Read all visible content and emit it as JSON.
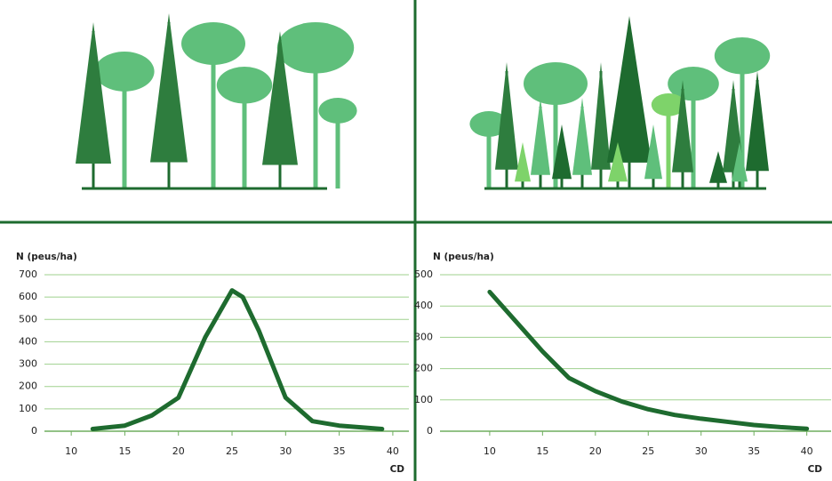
{
  "chart_data": [
    {
      "type": "line",
      "y_label": "N (peus/ha)",
      "x_label": "CD",
      "x": [
        12,
        15,
        17.5,
        20,
        22.5,
        25,
        26,
        27.5,
        30,
        32.5,
        35,
        39
      ],
      "values": [
        10,
        25,
        70,
        150,
        420,
        630,
        600,
        450,
        150,
        45,
        25,
        10
      ],
      "color": "#1e6b2f",
      "xlim": [
        7.5,
        41.5
      ],
      "xticks": [
        10,
        15,
        20,
        25,
        30,
        35,
        40
      ],
      "ylim": [
        0,
        700
      ],
      "yticks": [
        0,
        100,
        200,
        300,
        400,
        500,
        600,
        700
      ],
      "grid": true
    },
    {
      "type": "line",
      "y_label": "N (peus/ha)",
      "x_label": "CD",
      "x": [
        10,
        12.5,
        15,
        17.5,
        20,
        22.5,
        25,
        27.5,
        30,
        32.5,
        35,
        37.5,
        40
      ],
      "values": [
        445,
        350,
        255,
        170,
        128,
        95,
        70,
        52,
        40,
        30,
        20,
        13,
        8
      ],
      "color": "#1e6b2f",
      "xlim": [
        5.3,
        42.3
      ],
      "xticks": [
        10,
        15,
        20,
        25,
        30,
        35,
        40
      ],
      "ylim": [
        0,
        500
      ],
      "yticks": [
        0,
        100,
        200,
        300,
        400,
        500
      ],
      "grid": true
    }
  ]
}
